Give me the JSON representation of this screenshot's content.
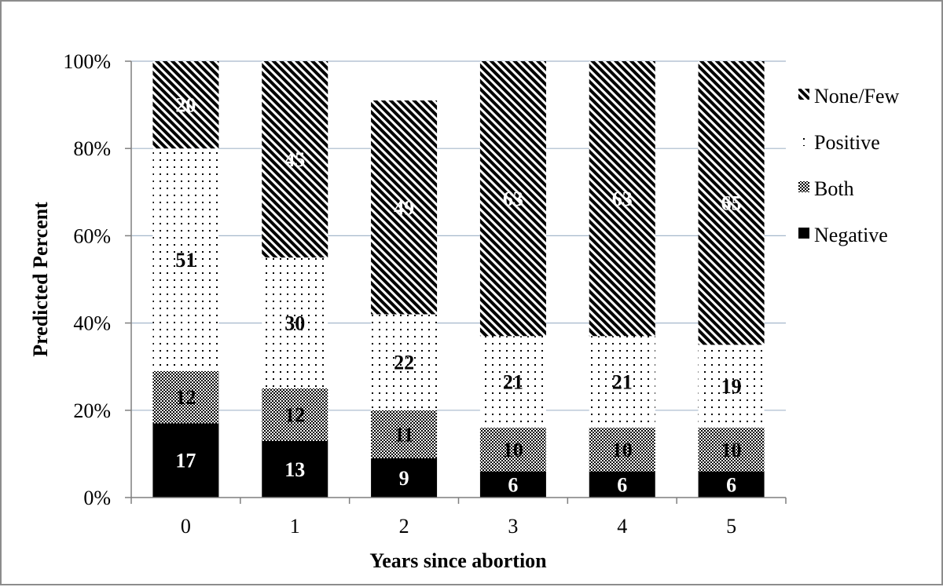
{
  "chart_data": {
    "type": "bar",
    "stacked": true,
    "title": "",
    "xlabel": "Years since abortion",
    "ylabel": "Predicted  Percent",
    "categories": [
      "0",
      "1",
      "2",
      "3",
      "4",
      "5"
    ],
    "yticks": [
      "0%",
      "20%",
      "40%",
      "60%",
      "80%",
      "100%"
    ],
    "ylim": [
      0,
      100
    ],
    "grid": true,
    "legend_position": "right",
    "series": [
      {
        "name": "Negative",
        "values": [
          17,
          13,
          9,
          6,
          6,
          6
        ],
        "pattern": "solid-black"
      },
      {
        "name": "Both",
        "values": [
          12,
          12,
          11,
          10,
          10,
          10
        ],
        "pattern": "crosshatch"
      },
      {
        "name": "Positive",
        "values": [
          51,
          30,
          22,
          21,
          21,
          19
        ],
        "pattern": "dotted"
      },
      {
        "name": "None/Few",
        "values": [
          20,
          45,
          49,
          63,
          63,
          65
        ],
        "pattern": "diagonal-stripes"
      }
    ],
    "legend_order": [
      "None/Few",
      "Positive",
      "Both",
      "Negative"
    ],
    "colors": {
      "axis": "#7f7f7f",
      "grid": "#a6b8cc",
      "bar_dark": "#000000"
    }
  }
}
